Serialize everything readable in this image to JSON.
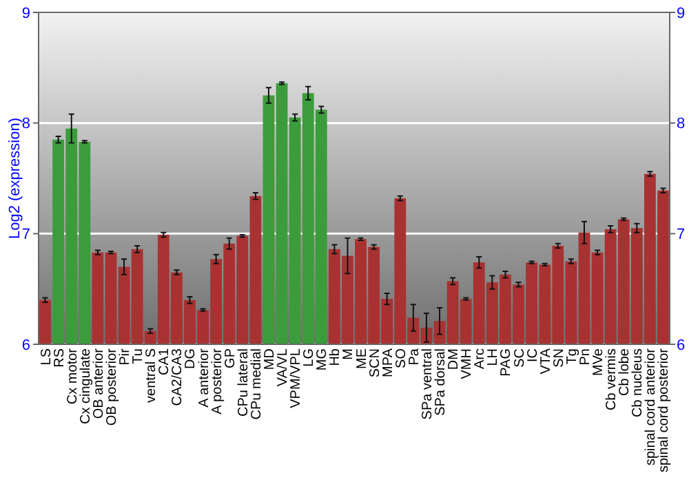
{
  "chart_data": {
    "type": "bar",
    "ylabel": "Log2 (expression)",
    "categories": [
      "LS",
      "RS",
      "Cx motor",
      "Cx cingulate",
      "OB anterior",
      "OB posterior",
      "Pir",
      "Tu",
      "ventral S",
      "CA1",
      "CA2/CA3",
      "DG",
      "A anterior",
      "A posterior",
      "GP",
      "CPu lateral",
      "CPu medial",
      "MD",
      "VA/VL",
      "VPM/VPL",
      "LG",
      "MG",
      "Hb",
      "M",
      "ME",
      "SCN",
      "MPA",
      "SO",
      "Pa",
      "SPa ventral",
      "SPa dorsal",
      "DM",
      "VMH",
      "Arc",
      "LH",
      "PAG",
      "SC",
      "IC",
      "VTA",
      "SN",
      "Tg",
      "Pn",
      "MVe",
      "Cb vermis",
      "Cb lobe",
      "Cb nucleus",
      "spinal cord anterior",
      "spinal cord posterior"
    ],
    "values": [
      6.4,
      7.85,
      7.95,
      7.83,
      6.83,
      6.83,
      6.7,
      6.86,
      6.12,
      6.99,
      6.65,
      6.4,
      6.31,
      6.77,
      6.91,
      6.98,
      7.34,
      8.25,
      8.36,
      8.05,
      8.27,
      8.12,
      6.86,
      6.8,
      6.95,
      6.88,
      6.41,
      7.32,
      6.24,
      6.15,
      6.21,
      6.57,
      6.41,
      6.74,
      6.56,
      6.63,
      6.54,
      6.74,
      6.72,
      6.89,
      6.75,
      7.01,
      6.83,
      7.04,
      7.13,
      7.05,
      7.54,
      7.39
    ],
    "errors": [
      0.02,
      0.03,
      0.13,
      0.01,
      0.02,
      0.01,
      0.07,
      0.03,
      0.02,
      0.02,
      0.02,
      0.03,
      0.01,
      0.04,
      0.05,
      0.01,
      0.03,
      0.07,
      0.01,
      0.03,
      0.06,
      0.03,
      0.04,
      0.16,
      0.01,
      0.02,
      0.05,
      0.02,
      0.12,
      0.13,
      0.12,
      0.03,
      0.01,
      0.05,
      0.06,
      0.03,
      0.02,
      0.01,
      0.01,
      0.02,
      0.02,
      0.1,
      0.02,
      0.03,
      0.01,
      0.04,
      0.02,
      0.02
    ],
    "colors": [
      "#a83232",
      "#3c9c3c",
      "#3c9c3c",
      "#3c9c3c",
      "#a83232",
      "#a83232",
      "#a83232",
      "#a83232",
      "#a83232",
      "#a83232",
      "#a83232",
      "#a83232",
      "#a83232",
      "#a83232",
      "#a83232",
      "#a83232",
      "#a83232",
      "#3c9c3c",
      "#3c9c3c",
      "#3c9c3c",
      "#3c9c3c",
      "#3c9c3c",
      "#a83232",
      "#a83232",
      "#a83232",
      "#a83232",
      "#a83232",
      "#a83232",
      "#a83232",
      "#a83232",
      "#a83232",
      "#a83232",
      "#a83232",
      "#a83232",
      "#a83232",
      "#a83232",
      "#a83232",
      "#a83232",
      "#a83232",
      "#a83232",
      "#a83232",
      "#a83232",
      "#a83232",
      "#a83232",
      "#a83232",
      "#a83232",
      "#a83232",
      "#a83232"
    ],
    "ylim": [
      6,
      9
    ],
    "yticks": [
      6,
      7,
      8,
      9
    ],
    "y2lim": [
      6,
      9
    ],
    "y2ticks": [
      6,
      7,
      8,
      9
    ],
    "grid": "y"
  }
}
